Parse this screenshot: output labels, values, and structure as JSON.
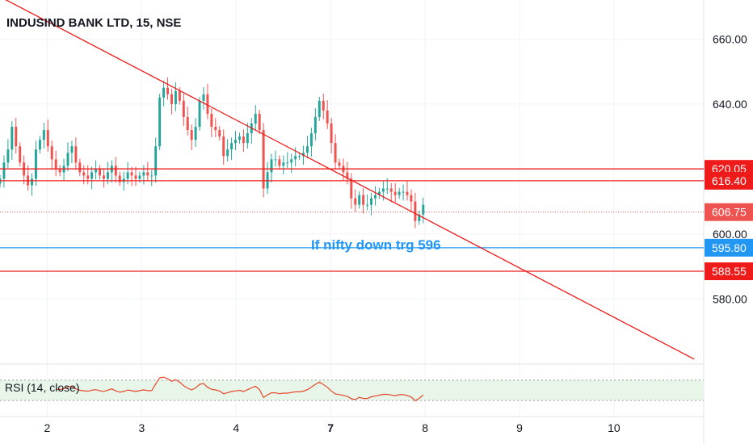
{
  "chart_data": {
    "type": "candlestick",
    "title": "INDUSIND BANK LTD, 15, NSE",
    "price_axis": {
      "ylim": [
        560,
        672
      ],
      "ticks": [
        "660.00",
        "640.00",
        "620.00",
        "600.00",
        "580.00"
      ]
    },
    "x_axis": {
      "ticks": [
        {
          "label": "2",
          "x": 2,
          "bold": false
        },
        {
          "label": "3",
          "x": 3,
          "bold": false
        },
        {
          "label": "4",
          "x": 4,
          "bold": false
        },
        {
          "label": "7",
          "x": 5,
          "bold": true
        },
        {
          "label": "8",
          "x": 6,
          "bold": false
        },
        {
          "label": "9",
          "x": 7,
          "bold": false
        },
        {
          "label": "10",
          "x": 8,
          "bold": false
        }
      ],
      "xlim": [
        1.5,
        8.95
      ]
    },
    "horizontal_levels": [
      {
        "price": 620.05,
        "label": "620.05",
        "color": "#ef1b1b"
      },
      {
        "price": 616.4,
        "label": "616.40",
        "color": "#ef1b1b"
      },
      {
        "price": 606.75,
        "label": "606.75",
        "color": "#ef5350",
        "dotted": true
      },
      {
        "price": 595.8,
        "label": "595.80",
        "color": "#2196f3"
      },
      {
        "price": 588.55,
        "label": "588.55",
        "color": "#ef1b1b"
      }
    ],
    "trendline": {
      "x1": 1.5,
      "y1": 673,
      "x2": 8.85,
      "y2": 561.5,
      "color": "#ef1b1b"
    },
    "annotation": {
      "text": "If nifty down trg 596",
      "color": "#2196f3"
    },
    "closes": [
      617,
      622,
      626,
      633,
      627,
      622,
      618,
      615,
      617,
      626,
      629,
      632,
      627,
      623,
      620,
      619,
      621,
      625,
      627,
      622,
      619,
      618,
      617,
      619,
      620,
      618,
      617,
      619,
      621,
      618,
      616,
      617,
      619,
      618,
      617,
      618,
      619,
      618,
      618,
      627,
      642,
      645,
      643,
      640,
      644,
      641,
      636,
      632,
      629,
      633,
      641,
      643,
      637,
      633,
      632,
      630,
      624,
      626,
      628,
      629,
      630,
      628,
      631,
      634,
      637,
      632,
      614,
      619,
      623,
      623,
      621,
      622,
      622,
      623,
      624,
      624,
      625,
      627,
      631,
      636,
      641,
      638,
      634,
      628,
      622,
      621,
      619,
      617,
      611,
      609,
      612,
      609,
      609,
      611,
      612,
      613,
      614,
      614,
      613,
      612,
      613,
      613,
      612,
      610,
      604,
      606,
      609
    ],
    "rsi": {
      "label": "RSI (14, close)",
      "period": 14,
      "source": "close",
      "bands": [
        70,
        30
      ],
      "color": "#e5482a",
      "band_fill": "#e8f5e9"
    },
    "colors": {
      "up": "#26a69a",
      "down": "#ef5350",
      "grid": "#f0f3fa",
      "axis_text": "#131722"
    }
  }
}
